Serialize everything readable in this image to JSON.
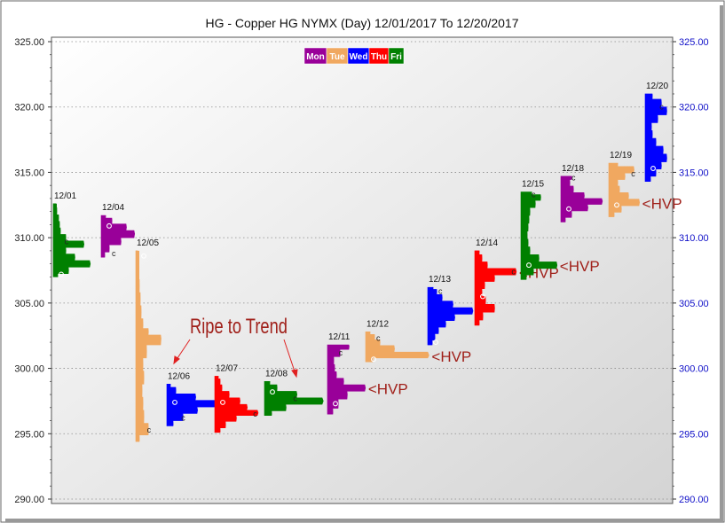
{
  "chart_data": {
    "type": "market-profile",
    "title": "HG - Copper HG NYMX  (Day) 12/01/2017 To 12/20/2017",
    "ylim": [
      290,
      325
    ],
    "y_ticks": [
      "325.00",
      "320.00",
      "315.00",
      "310.00",
      "305.00",
      "300.00",
      "295.00",
      "290.00"
    ],
    "legend": {
      "placement": "top-center",
      "items": [
        {
          "label": "Mon",
          "color": "#990099"
        },
        {
          "label": "Tue",
          "color": "#f0a860"
        },
        {
          "label": "Wed",
          "color": "#0000ff"
        },
        {
          "label": "Thu",
          "color": "#ff0000"
        },
        {
          "label": "Fri",
          "color": "#008000"
        }
      ]
    },
    "annotations": {
      "trend_text": "Ripe to Trend",
      "hvp_text": "<HVP"
    },
    "sessions": [
      {
        "date": "12/01",
        "weekday": "Fri",
        "low": 307.0,
        "high": 312.6,
        "profile": [
          [
            307.0,
            5
          ],
          [
            307.5,
            17
          ],
          [
            308.0,
            41
          ],
          [
            308.5,
            24
          ],
          [
            309.0,
            14
          ],
          [
            309.5,
            34
          ],
          [
            310.0,
            14
          ],
          [
            310.5,
            8
          ],
          [
            311.0,
            7
          ],
          [
            311.5,
            6
          ],
          [
            312.0,
            4
          ],
          [
            312.6,
            3
          ]
        ],
        "o": 307.2,
        "c": 309.7,
        "hvp": false
      },
      {
        "date": "12/04",
        "weekday": "Mon",
        "low": 308.5,
        "high": 311.7,
        "profile": [
          [
            308.6,
            4
          ],
          [
            309.2,
            9
          ],
          [
            309.7,
            22
          ],
          [
            310.3,
            37
          ],
          [
            310.8,
            28
          ],
          [
            311.3,
            12
          ],
          [
            311.7,
            5
          ]
        ],
        "o": 310.9,
        "c": 308.8,
        "hvp": false
      },
      {
        "date": "12/05",
        "weekday": "Tue",
        "low": 294.4,
        "high": 309.0,
        "profile": [
          [
            294.5,
            4
          ],
          [
            295.3,
            14
          ],
          [
            296.3,
            9
          ],
          [
            297.3,
            8
          ],
          [
            298.3,
            7
          ],
          [
            299.3,
            9
          ],
          [
            300.3,
            8
          ],
          [
            301.3,
            12
          ],
          [
            302.3,
            28
          ],
          [
            302.8,
            14
          ],
          [
            303.3,
            8
          ],
          [
            304.3,
            6
          ],
          [
            305.3,
            5
          ],
          [
            306.3,
            4
          ],
          [
            307.3,
            3
          ],
          [
            308.3,
            3
          ],
          [
            309.0,
            2
          ]
        ],
        "o": 308.6,
        "c": 295.3,
        "hvp": false
      },
      {
        "date": "12/06",
        "weekday": "Wed",
        "low": 295.6,
        "high": 298.8,
        "profile": [
          [
            295.7,
            7
          ],
          [
            296.3,
            18
          ],
          [
            296.8,
            34
          ],
          [
            297.3,
            56
          ],
          [
            297.8,
            32
          ],
          [
            298.3,
            10
          ],
          [
            298.8,
            4
          ]
        ],
        "o": 297.4,
        "c": 296.2,
        "hvp": false
      },
      {
        "date": "12/07",
        "weekday": "Thu",
        "low": 295.1,
        "high": 299.4,
        "profile": [
          [
            295.2,
            6
          ],
          [
            295.7,
            12
          ],
          [
            296.2,
            24
          ],
          [
            296.6,
            48
          ],
          [
            297.0,
            36
          ],
          [
            297.5,
            28
          ],
          [
            298.0,
            16
          ],
          [
            298.5,
            8
          ],
          [
            299.0,
            6
          ],
          [
            299.4,
            4
          ]
        ],
        "o": 297.4,
        "c": 296.5,
        "hvp": false
      },
      {
        "date": "12/08",
        "weekday": "Fri",
        "low": 296.4,
        "high": 299.0,
        "profile": [
          [
            296.5,
            8
          ],
          [
            297.0,
            24
          ],
          [
            297.5,
            65
          ],
          [
            298.0,
            36
          ],
          [
            298.5,
            14
          ],
          [
            299.0,
            6
          ]
        ],
        "o": 298.2,
        "c": 297.7,
        "hvp": false
      },
      {
        "date": "12/11",
        "weekday": "Mon",
        "low": 296.5,
        "high": 301.8,
        "profile": [
          [
            296.6,
            6
          ],
          [
            297.3,
            12
          ],
          [
            298.0,
            22
          ],
          [
            298.5,
            42
          ],
          [
            299.0,
            18
          ],
          [
            299.5,
            10
          ],
          [
            300.0,
            8
          ],
          [
            300.6,
            7
          ],
          [
            301.2,
            14
          ],
          [
            301.7,
            24
          ]
        ],
        "o": 297.3,
        "c": 301.2,
        "hvp": true
      },
      {
        "date": "12/12",
        "weekday": "Tue",
        "low": 300.5,
        "high": 302.8,
        "profile": [
          [
            300.6,
            8
          ],
          [
            301.0,
            70
          ],
          [
            301.5,
            32
          ],
          [
            302.0,
            16
          ],
          [
            302.4,
            10
          ],
          [
            302.8,
            5
          ]
        ],
        "o": 300.7,
        "c": 302.3,
        "hvp": true
      },
      {
        "date": "12/13",
        "weekday": "Wed",
        "low": 301.8,
        "high": 306.2,
        "profile": [
          [
            301.9,
            5
          ],
          [
            302.4,
            8
          ],
          [
            302.9,
            12
          ],
          [
            303.4,
            20
          ],
          [
            303.9,
            30
          ],
          [
            304.4,
            50
          ],
          [
            304.9,
            28
          ],
          [
            305.4,
            16
          ],
          [
            305.9,
            10
          ],
          [
            306.2,
            6
          ]
        ],
        "o": 302.0,
        "c": 305.9,
        "hvp": false
      },
      {
        "date": "12/14",
        "weekday": "Thu",
        "low": 303.3,
        "high": 309.0,
        "profile": [
          [
            303.4,
            5
          ],
          [
            304.0,
            9
          ],
          [
            304.6,
            22
          ],
          [
            305.2,
            12
          ],
          [
            305.8,
            8
          ],
          [
            306.4,
            11
          ],
          [
            306.9,
            22
          ],
          [
            307.4,
            46
          ],
          [
            307.9,
            14
          ],
          [
            308.4,
            8
          ],
          [
            309.0,
            5
          ]
        ],
        "o": 305.5,
        "c": 307.4,
        "hvp": true
      },
      {
        "date": "12/15",
        "weekday": "Fri",
        "low": 306.8,
        "high": 313.5,
        "profile": [
          [
            306.9,
            6
          ],
          [
            307.4,
            14
          ],
          [
            307.9,
            40
          ],
          [
            308.4,
            20
          ],
          [
            309.0,
            10
          ],
          [
            309.6,
            8
          ],
          [
            310.2,
            7
          ],
          [
            310.8,
            8
          ],
          [
            311.4,
            9
          ],
          [
            312.0,
            10
          ],
          [
            312.6,
            16
          ],
          [
            313.1,
            22
          ],
          [
            313.5,
            12
          ]
        ],
        "o": 307.9,
        "c": 313.3,
        "hvp": true
      },
      {
        "date": "12/18",
        "weekday": "Mon",
        "low": 311.2,
        "high": 314.7,
        "profile": [
          [
            311.3,
            5
          ],
          [
            311.8,
            12
          ],
          [
            312.3,
            30
          ],
          [
            312.8,
            46
          ],
          [
            313.2,
            26
          ],
          [
            313.7,
            14
          ],
          [
            314.2,
            10
          ],
          [
            314.7,
            12
          ]
        ],
        "o": 312.2,
        "c": 314.6,
        "hvp": false
      },
      {
        "date": "12/19",
        "weekday": "Tue",
        "low": 311.6,
        "high": 315.7,
        "profile": [
          [
            311.7,
            6
          ],
          [
            312.2,
            14
          ],
          [
            312.7,
            34
          ],
          [
            313.2,
            22
          ],
          [
            313.7,
            12
          ],
          [
            314.2,
            10
          ],
          [
            314.7,
            18
          ],
          [
            315.2,
            28
          ],
          [
            315.7,
            10
          ]
        ],
        "o": 312.5,
        "c": 314.9,
        "hvp": true
      },
      {
        "date": "12/20",
        "weekday": "Wed",
        "low": 314.3,
        "high": 321.0,
        "profile": [
          [
            314.4,
            6
          ],
          [
            315.0,
            12
          ],
          [
            315.5,
            18
          ],
          [
            316.1,
            24
          ],
          [
            316.7,
            20
          ],
          [
            317.3,
            12
          ],
          [
            317.9,
            8
          ],
          [
            318.5,
            7
          ],
          [
            319.1,
            14
          ],
          [
            319.7,
            24
          ],
          [
            320.3,
            18
          ],
          [
            320.9,
            8
          ]
        ],
        "o": 315.3,
        "c": 320.0,
        "hvp": false
      }
    ]
  }
}
